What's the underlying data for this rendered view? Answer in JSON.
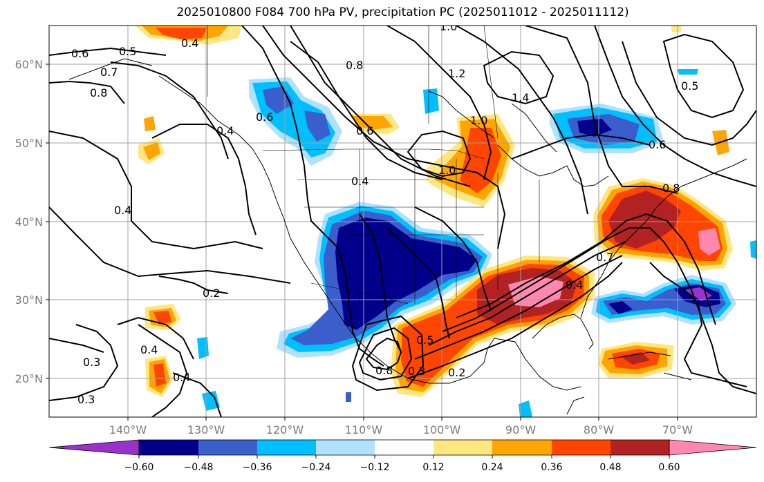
{
  "title": "2025010800 F084 700 hPa PV, precipitation PC (2025011012 - 2025011112)",
  "map": {
    "lat_labels": [
      "60°N",
      "50°N",
      "40°N",
      "30°N",
      "20°N"
    ],
    "lon_labels": [
      "140°W",
      "130°W",
      "120°W",
      "110°W",
      "100°W",
      "90°W",
      "80°W",
      "70°W"
    ],
    "contour_labels": [
      "0.6",
      "0.5",
      "0.7",
      "0.8",
      "0.4",
      "0.6",
      "0.4",
      "0.8",
      "1.0",
      "1.2",
      "1.4",
      "0.6",
      "1.0",
      "1.0",
      "0.4",
      "0.5",
      "0.6",
      "0.8",
      "0.4",
      "0.2",
      "0.4",
      "0.3",
      "0.4",
      "0.3",
      "0.8",
      "0.3",
      "0.5",
      "0.2",
      "0.4",
      "0.7"
    ]
  },
  "colorbar": {
    "ticks": [
      "−0.60",
      "−0.48",
      "−0.36",
      "−0.24",
      "−0.12",
      "0.12",
      "0.24",
      "0.36",
      "0.48",
      "0.60"
    ],
    "colors": {
      "lt_m060": "#9932cc",
      "m060_m048": "#00008b",
      "m048_m036": "#3a5fcd",
      "m036_m024": "#00bfff",
      "m024_m012": "#b0e2ff",
      "m012_012": "#ffffff",
      "p012_p024": "#ffe680",
      "p024_p036": "#ffa500",
      "p036_p048": "#ff4500",
      "p048_p060": "#b22222",
      "gt_p060": "#ff88b0"
    }
  }
}
